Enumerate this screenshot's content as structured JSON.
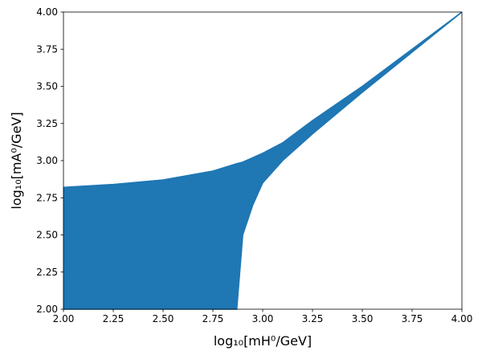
{
  "chart_data": {
    "type": "area_between",
    "x_label": "log₁₀[mH⁰/GeV]",
    "y_label": "log₁₀[mA⁰/GeV]",
    "x": [
      2.0,
      2.25,
      2.5,
      2.75,
      2.87,
      2.9,
      2.95,
      3.0,
      3.1,
      3.25,
      3.5,
      3.75,
      4.0
    ],
    "upper": [
      2.82,
      2.84,
      2.87,
      2.93,
      2.98,
      2.99,
      3.02,
      3.05,
      3.12,
      3.27,
      3.5,
      3.75,
      4.0
    ],
    "lower": [
      2.0,
      2.0,
      2.0,
      2.0,
      2.0,
      2.5,
      2.7,
      2.85,
      3.0,
      3.18,
      3.46,
      3.73,
      4.0
    ],
    "color": "#1f77b4",
    "xlim": [
      2.0,
      4.0
    ],
    "ylim": [
      2.0,
      4.0
    ],
    "xticks": [
      {
        "value": 2.0,
        "label": "2.00"
      },
      {
        "value": 2.25,
        "label": "2.25"
      },
      {
        "value": 2.5,
        "label": "2.50"
      },
      {
        "value": 2.75,
        "label": "2.75"
      },
      {
        "value": 3.0,
        "label": "3.00"
      },
      {
        "value": 3.25,
        "label": "3.25"
      },
      {
        "value": 3.5,
        "label": "3.50"
      },
      {
        "value": 3.75,
        "label": "3.75"
      },
      {
        "value": 4.0,
        "label": "4.00"
      }
    ],
    "yticks": [
      {
        "value": 2.0,
        "label": "2.00"
      },
      {
        "value": 2.25,
        "label": "2.25"
      },
      {
        "value": 2.5,
        "label": "2.50"
      },
      {
        "value": 2.75,
        "label": "2.75"
      },
      {
        "value": 3.0,
        "label": "3.00"
      },
      {
        "value": 3.25,
        "label": "3.25"
      },
      {
        "value": 3.5,
        "label": "3.50"
      },
      {
        "value": 3.75,
        "label": "3.75"
      },
      {
        "value": 4.0,
        "label": "4.00"
      }
    ]
  }
}
